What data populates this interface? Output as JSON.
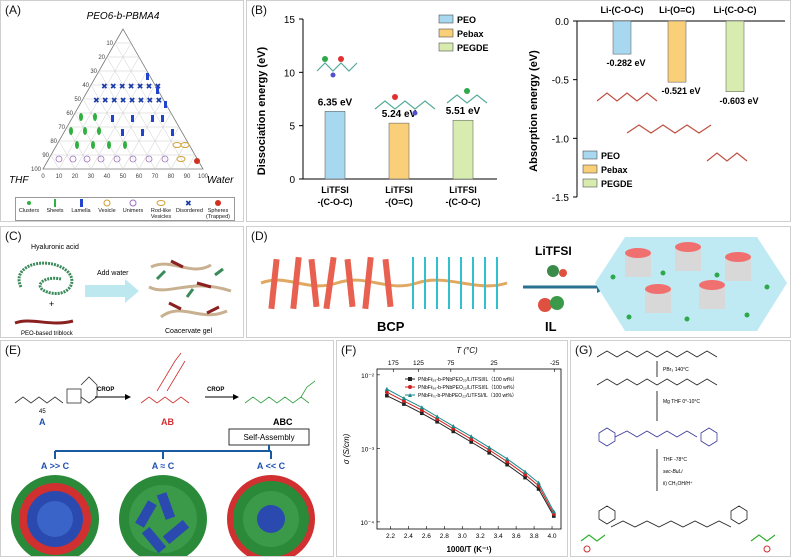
{
  "panels": {
    "A": {
      "label": "(A)",
      "title": "PEO6-b-PBMA4",
      "corner_left": "THF",
      "corner_right": "Water",
      "ticks_left": [
        "100",
        "90",
        "80",
        "70",
        "60",
        "50",
        "40",
        "30",
        "20",
        "10",
        "0"
      ],
      "ticks_bottom": [
        "0",
        "10",
        "20",
        "30",
        "40",
        "50",
        "60",
        "70",
        "80",
        "90",
        "100"
      ],
      "legend": [
        "Clusters",
        "Sheets",
        "Lamella",
        "Vesicle",
        "Unimers",
        "Rod-like Vesicles",
        "Disordered",
        "Spheres (Trapped)"
      ]
    },
    "B": {
      "label": "(B)",
      "left_ylabel": "Dissociation energy (eV)",
      "right_ylabel": "Absorption energy (eV)",
      "legend": [
        "PEO",
        "Pebax",
        "PEGDE"
      ],
      "top_labels": [
        "Li-(C-O-C)",
        "Li-(O=C)",
        "Li-(C-O-C)"
      ]
    },
    "C": {
      "label": "(C)",
      "text1": "Hyaluronic acid",
      "text2": "Add water",
      "text3": "PEO-based triblock",
      "text4": "Coacervate gel",
      "plus": "+"
    },
    "D": {
      "label": "(D)",
      "litfsi": "LiTFSI",
      "il": "IL",
      "bcp": "BCP"
    },
    "E": {
      "label": "(E)",
      "crop1": "CROP",
      "crop2": "CROP",
      "mol_a": "A",
      "mol_ab": "AB",
      "mol_abc": "ABC",
      "self_assembly": "Self-Assembly",
      "conds": [
        "A >> C",
        "A ≈ C",
        "A << C"
      ],
      "n45": "45"
    },
    "F": {
      "label": "(F)",
      "top_axis_label": "T (°C)",
      "ylabel": "σ (S/cm)",
      "xlabel": "1000/T (K⁻¹)",
      "legend": [
        "PNbFℓ₂₉-b-PNbPEO₂₂/LiTFSI/IL（100 wt%）",
        "PNbFℓ₃₆-b-PNbPEO₂₂/LiTFSI/IL（100 wt%）",
        "PNbFℓ₇₁-b-PNbPEO₂₂/LiTFSI/IL（100 wt%）"
      ]
    },
    "G": {
      "label": "(G)",
      "steps": [
        "PBr₃  140°C",
        "Mg  THF  0°-10°C",
        "THF  -78°C",
        "sec-BuLi",
        "ii) CH₃OH/H⁺"
      ]
    }
  },
  "chart_data": [
    {
      "type": "bar",
      "title": "",
      "categories": [
        "LiTFSI -(C-O-C)",
        "LiTFSI -(O=C)",
        "LiTFSI -(C-O-C)"
      ],
      "series": [
        {
          "name": "Dissociation energy",
          "values": [
            6.35,
            5.24,
            5.51
          ]
        }
      ],
      "value_labels": [
        "6.35 eV",
        "5.24 eV",
        "5.51 eV"
      ],
      "legend": [
        "PEO",
        "Pebax",
        "PEGDE"
      ],
      "colors": [
        "#a8d8f0",
        "#f9cf7a",
        "#d8ecb0"
      ],
      "ylabel": "Dissociation energy (eV)",
      "ylim": [
        0,
        15
      ],
      "yticks": [
        "0",
        "5",
        "10",
        "15"
      ]
    },
    {
      "type": "bar",
      "title": "",
      "categories": [
        "Li-(C-O-C)",
        "Li-(O=C)",
        "Li-(C-O-C)"
      ],
      "series": [
        {
          "name": "Absorption energy",
          "values": [
            -0.282,
            -0.521,
            -0.603
          ]
        }
      ],
      "value_labels": [
        "-0.282 eV",
        "-0.521 eV",
        "-0.603 eV"
      ],
      "legend": [
        "PEO",
        "Pebax",
        "PEGDE"
      ],
      "colors": [
        "#a8d8f0",
        "#f9cf7a",
        "#d8ecb0"
      ],
      "ylabel": "Absorption energy (eV)",
      "ylim": [
        -1.5,
        0
      ],
      "yticks": [
        "0.0",
        "-0.5",
        "-1.0",
        "-1.5"
      ]
    },
    {
      "type": "line",
      "title": "",
      "xlabel": "1000/T (K⁻¹)",
      "ylabel": "σ (S/cm)",
      "yscale": "log",
      "xlim": [
        2.05,
        4.1
      ],
      "ylim": [
        8e-05,
        0.012
      ],
      "xticks": [
        "2.2",
        "2.4",
        "2.6",
        "2.8",
        "3.0",
        "3.2",
        "3.4",
        "3.6",
        "3.8",
        "4.0"
      ],
      "yticks": [
        "10⁻⁴",
        "10⁻³",
        "10⁻²"
      ],
      "top_ticks": [
        "175",
        "125",
        "75",
        "25",
        "-25"
      ],
      "series": [
        {
          "name": "PNbFℓ₂₉-b-PNbPEO₂₂/LiTFSI/IL（100 wt%）",
          "color": "#222222",
          "x": [
            2.16,
            2.35,
            2.55,
            2.72,
            2.9,
            3.1,
            3.3,
            3.5,
            3.7,
            3.85,
            4.02
          ],
          "y": [
            0.0052,
            0.004,
            0.003,
            0.0023,
            0.0017,
            0.00122,
            0.00087,
            0.0006,
            0.0004,
            0.00028,
            0.00012
          ]
        },
        {
          "name": "PNbFℓ₃₆-b-PNbPEO₂₂/LiTFSI/IL（100 wt%）",
          "color": "#d02020",
          "x": [
            2.16,
            2.35,
            2.55,
            2.72,
            2.9,
            3.1,
            3.3,
            3.5,
            3.7,
            3.85,
            4.02
          ],
          "y": [
            0.0058,
            0.0044,
            0.0033,
            0.0025,
            0.00185,
            0.00133,
            0.00095,
            0.00066,
            0.00044,
            0.00031,
            0.000128
          ]
        },
        {
          "name": "PNbFℓ₇₁-b-PNbPEO₂₂/LiTFSI/IL（100 wt%）",
          "color": "#1a8a8a",
          "x": [
            2.16,
            2.35,
            2.55,
            2.72,
            2.9,
            3.1,
            3.3,
            3.5,
            3.7,
            3.85,
            4.02
          ],
          "y": [
            0.0064,
            0.0048,
            0.0036,
            0.0027,
            0.002,
            0.00145,
            0.00103,
            0.00072,
            0.00048,
            0.00034,
            0.000138
          ]
        }
      ]
    }
  ]
}
